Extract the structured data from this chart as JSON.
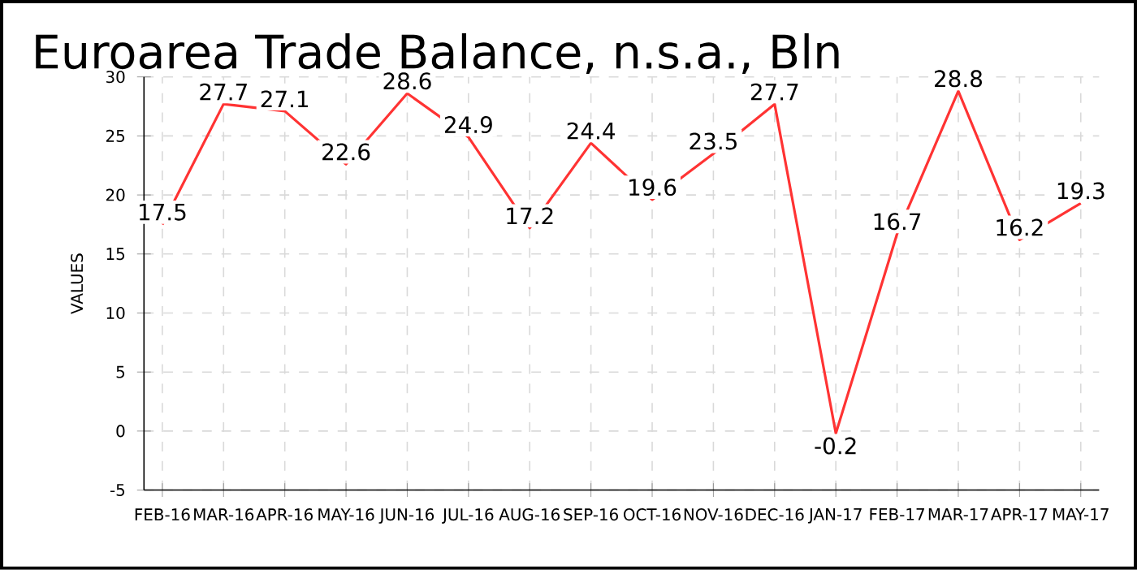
{
  "chart_data": {
    "type": "line",
    "title": "Euroarea Trade Balance, n.s.a., Bln",
    "ylabel": "VALUES",
    "categories": [
      "FEB-16",
      "MAR-16",
      "APR-16",
      "MAY-16",
      "JUN-16",
      "JUL-16",
      "AUG-16",
      "SEP-16",
      "OCT-16",
      "NOV-16",
      "DEC-16",
      "JAN-17",
      "FEB-17",
      "MAR-17",
      "APR-17",
      "MAY-17"
    ],
    "series": [
      {
        "color": "#ff3333",
        "values": [
          17.5,
          27.7,
          27.1,
          22.6,
          28.6,
          24.9,
          17.2,
          24.4,
          19.6,
          23.5,
          27.7,
          -0.2,
          16.7,
          28.8,
          16.2,
          19.3
        ]
      }
    ],
    "ylim": [
      -5,
      30
    ],
    "yticks": [
      -5,
      0,
      5,
      10,
      15,
      20,
      25,
      30
    ],
    "grid": true,
    "data_labels": true,
    "marker": "none",
    "line_style": "solid"
  }
}
